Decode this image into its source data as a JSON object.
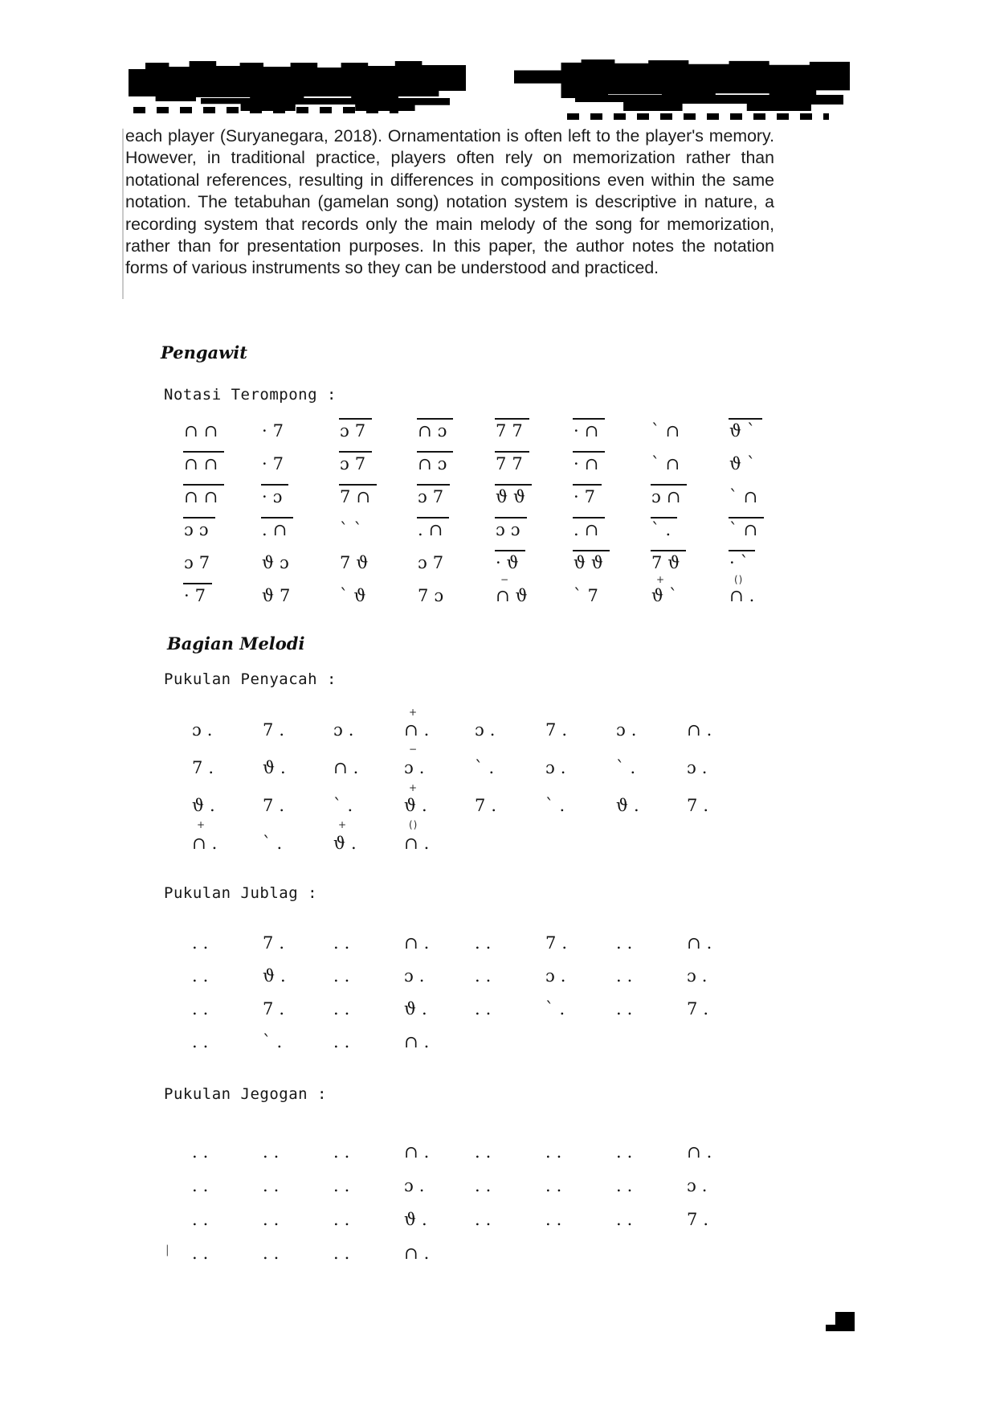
{
  "document": {
    "paragraph": "each player (Suryanegara, 2018). Ornamentation is often left to the player's memory. However, in traditional practice, players often rely on memorization rather than notational references, resulting in differences in compositions even within the same notation. The tetabuhan (gamelan song) notation system is descriptive in nature, a recording system that records only the main melody of the song for memorization, rather than for presentation purposes. In this paper, the author notes the notation forms of various instruments so they can be understood and practiced.",
    "sections": {
      "pengawit": {
        "heading": "Pengawit",
        "label": "Notasi Terompong :"
      },
      "bagian_melodi": {
        "heading": "Bagian Melodi",
        "label": "Pukulan Penyacah :"
      },
      "jublag": {
        "label": "Pukulan Jublag :"
      },
      "jegogan": {
        "label": "Pukulan Jegogan :"
      }
    },
    "notation": {
      "terompong": [
        [
          {
            "g": "∩∩"
          },
          {
            "g": "·7"
          },
          {
            "g": "ɔ7",
            "o": true
          },
          {
            "g": "∩ɔ",
            "o": true
          },
          {
            "g": "77",
            "o": true
          },
          {
            "g": "·∩",
            "o": true
          },
          {
            "g": "ˋ∩"
          },
          {
            "g": "ϑˋ",
            "o": true
          }
        ],
        [
          {
            "g": "∩∩",
            "o": true
          },
          {
            "g": "·7"
          },
          {
            "g": "ɔ7",
            "o": true
          },
          {
            "g": "∩ɔ",
            "o": true
          },
          {
            "g": "77",
            "o": true
          },
          {
            "g": "·∩",
            "o": true
          },
          {
            "g": "ˋ∩"
          },
          {
            "g": "ϑˋ"
          }
        ],
        [
          {
            "g": "∩∩",
            "o": true
          },
          {
            "g": "·ɔ",
            "o": true
          },
          {
            "g": "7∩",
            "o": true
          },
          {
            "g": "ɔ7",
            "o": true
          },
          {
            "g": "ϑϑ",
            "o": true
          },
          {
            "g": "·7",
            "o": true
          },
          {
            "g": "ɔ∩",
            "o": true
          },
          {
            "g": "ˋ∩"
          }
        ],
        [
          {
            "g": "ɔɔ",
            "o": true
          },
          {
            "g": ".∩",
            "o": true
          },
          {
            "g": "ˋˋ"
          },
          {
            "g": ".∩",
            "o": true
          },
          {
            "g": "ɔɔ",
            "o": true
          },
          {
            "g": ".∩",
            "o": true
          },
          {
            "g": "ˋ.",
            "o": true
          },
          {
            "g": "ˋ∩",
            "o": true
          }
        ],
        [
          {
            "g": "ɔ7"
          },
          {
            "g": "ϑɔ"
          },
          {
            "g": "7ϑ"
          },
          {
            "g": "ɔ7"
          },
          {
            "g": "·ϑ",
            "o": true,
            "b": "−"
          },
          {
            "g": "ϑϑ",
            "o": true
          },
          {
            "g": "7ϑ",
            "o": true,
            "b": "+"
          },
          {
            "g": "·ˋ",
            "o": true,
            "b": "()"
          }
        ],
        [
          {
            "g": "·7",
            "o": true
          },
          {
            "g": "ϑ7"
          },
          {
            "g": "ˋϑ"
          },
          {
            "g": "7ɔ"
          },
          {
            "g": "∩ϑ"
          },
          {
            "g": "ˋ7"
          },
          {
            "g": "ϑˋ"
          },
          {
            "g": "∩."
          }
        ]
      ],
      "penyacah": [
        [
          {
            "g": "ɔ."
          },
          {
            "g": "7."
          },
          {
            "g": "ɔ."
          },
          {
            "g": "∩.",
            "a": "+",
            "b": "−"
          },
          {
            "g": "ɔ."
          },
          {
            "g": "7."
          },
          {
            "g": "ɔ."
          },
          {
            "g": "∩."
          }
        ],
        [
          {
            "g": "7."
          },
          {
            "g": "ϑ."
          },
          {
            "g": "∩."
          },
          {
            "g": "ɔ."
          },
          {
            "g": "ˋ."
          },
          {
            "g": "ɔ."
          },
          {
            "g": "ˋ."
          },
          {
            "g": "ɔ."
          }
        ],
        [
          {
            "g": "ϑ.",
            "b": "+"
          },
          {
            "g": "7."
          },
          {
            "g": "ˋ.",
            "b": "+"
          },
          {
            "g": "ϑ.",
            "a": "+",
            "b": "()"
          },
          {
            "g": "7."
          },
          {
            "g": "ˋ."
          },
          {
            "g": "ϑ."
          },
          {
            "g": "7."
          }
        ],
        [
          {
            "g": "∩."
          },
          {
            "g": "ˋ."
          },
          {
            "g": "ϑ."
          },
          {
            "g": "∩."
          }
        ]
      ],
      "jublag": [
        [
          {
            "g": ".."
          },
          {
            "g": "7."
          },
          {
            "g": ".."
          },
          {
            "g": "∩."
          },
          {
            "g": ".."
          },
          {
            "g": "7."
          },
          {
            "g": ".."
          },
          {
            "g": "∩."
          }
        ],
        [
          {
            "g": ".."
          },
          {
            "g": "ϑ."
          },
          {
            "g": ".."
          },
          {
            "g": "ɔ."
          },
          {
            "g": ".."
          },
          {
            "g": "ɔ."
          },
          {
            "g": ".."
          },
          {
            "g": "ɔ."
          }
        ],
        [
          {
            "g": ".."
          },
          {
            "g": "7."
          },
          {
            "g": ".."
          },
          {
            "g": "ϑ."
          },
          {
            "g": ".."
          },
          {
            "g": "ˋ."
          },
          {
            "g": ".."
          },
          {
            "g": "7."
          }
        ],
        [
          {
            "g": ".."
          },
          {
            "g": "ˋ."
          },
          {
            "g": ".."
          },
          {
            "g": "∩."
          }
        ]
      ],
      "jegogan": [
        [
          {
            "g": ".."
          },
          {
            "g": ".."
          },
          {
            "g": ".."
          },
          {
            "g": "∩."
          },
          {
            "g": ".."
          },
          {
            "g": ".."
          },
          {
            "g": ".."
          },
          {
            "g": "∩."
          }
        ],
        [
          {
            "g": ".."
          },
          {
            "g": ".."
          },
          {
            "g": ".."
          },
          {
            "g": "ɔ."
          },
          {
            "g": ".."
          },
          {
            "g": ".."
          },
          {
            "g": ".."
          },
          {
            "g": "ɔ."
          }
        ],
        [
          {
            "g": ".."
          },
          {
            "g": ".."
          },
          {
            "g": ".."
          },
          {
            "g": "ϑ."
          },
          {
            "g": ".."
          },
          {
            "g": ".."
          },
          {
            "g": ".."
          },
          {
            "g": "7."
          }
        ],
        [
          {
            "g": ".."
          },
          {
            "g": ".."
          },
          {
            "g": ".."
          },
          {
            "g": "∩."
          }
        ]
      ]
    },
    "artifacts": {
      "margin_mark": "|"
    }
  }
}
